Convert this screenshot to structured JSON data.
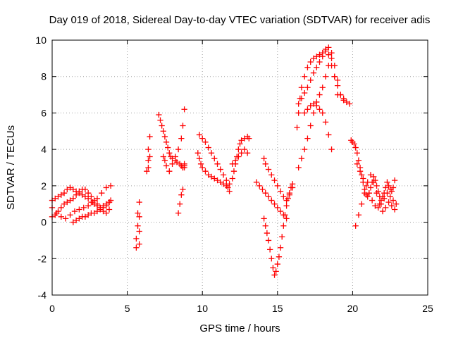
{
  "chart_data": {
    "type": "scatter",
    "title": "Day 019 of 2018, Sidereal Day-to-day VTEC variation (SDTVAR) for receiver adis",
    "xlabel": "GPS time / hours",
    "ylabel": "SDTVAR / TECUs",
    "xlim": [
      0,
      25
    ],
    "ylim": [
      -4,
      10
    ],
    "xticks": [
      "0",
      "5",
      "10",
      "15",
      "20",
      "25"
    ],
    "yticks": [
      "-4",
      "-2",
      "0",
      "2",
      "4",
      "6",
      "8",
      "10"
    ],
    "grid": true,
    "marker": "+",
    "series": [
      {
        "name": "SDTVAR",
        "color": "#ff0000",
        "x": [
          0.0,
          0.2,
          0.4,
          0.6,
          0.8,
          1.0,
          1.2,
          1.4,
          1.6,
          1.8,
          2.0,
          2.2,
          2.4,
          2.6,
          2.8,
          3.0,
          3.2,
          3.4,
          3.6,
          3.8,
          0.0,
          0.2,
          0.4,
          0.6,
          0.8,
          1.0,
          1.2,
          1.4,
          1.6,
          1.8,
          2.0,
          2.2,
          2.4,
          2.6,
          2.8,
          3.0,
          3.2,
          3.4,
          3.6,
          3.8,
          0.0,
          0.3,
          0.6,
          0.9,
          1.2,
          1.5,
          1.8,
          2.1,
          2.4,
          2.7,
          3.0,
          3.3,
          3.6,
          3.9,
          1.4,
          1.6,
          1.8,
          2.0,
          2.2,
          2.4,
          2.6,
          2.8,
          3.0,
          3.2,
          3.4,
          3.6,
          3.8,
          3.9,
          5.6,
          5.6,
          5.7,
          5.7,
          5.8,
          5.8,
          5.8,
          5.8,
          6.3,
          6.4,
          6.4,
          6.5,
          6.5,
          6.4,
          7.1,
          7.2,
          7.3,
          7.4,
          7.5,
          7.6,
          7.7,
          7.8,
          7.9,
          8.0,
          8.2,
          8.3,
          8.5,
          8.6,
          8.7,
          8.7,
          8.8,
          8.8,
          8.8,
          7.4,
          7.5,
          7.6,
          7.8,
          8.0,
          8.2,
          8.4,
          8.6,
          8.7,
          8.8,
          8.4,
          8.5,
          8.6,
          8.7,
          9.7,
          9.8,
          9.9,
          10.0,
          10.2,
          10.4,
          10.6,
          10.8,
          11.0,
          11.2,
          11.4,
          11.6,
          11.7,
          11.8,
          9.8,
          10.0,
          10.2,
          10.4,
          10.6,
          10.8,
          11.0,
          11.2,
          11.4,
          11.6,
          11.8,
          12.0,
          12.1,
          12.2,
          12.3,
          12.4,
          12.5,
          12.6,
          12.8,
          13.0,
          13.1,
          12.0,
          12.2,
          12.4,
          12.6,
          12.8,
          13.0,
          14.1,
          14.2,
          14.3,
          14.4,
          14.5,
          14.6,
          14.7,
          14.8,
          14.9,
          15.0,
          15.1,
          15.2,
          15.3,
          15.4,
          15.5,
          15.6,
          15.7,
          15.8,
          15.9,
          16.0,
          14.1,
          14.2,
          14.4,
          14.6,
          14.8,
          15.0,
          15.2,
          15.4,
          15.6,
          15.8,
          16.0,
          13.6,
          13.8,
          14.0,
          14.2,
          14.4,
          14.6,
          14.8,
          15.0,
          15.2,
          15.4,
          15.6,
          16.3,
          16.4,
          16.5,
          16.6,
          16.8,
          17.0,
          17.2,
          17.4,
          17.6,
          17.8,
          18.0,
          18.2,
          18.4,
          18.6,
          18.8,
          19.0,
          19.2,
          19.4,
          19.6,
          19.8,
          16.4,
          16.6,
          16.8,
          17.0,
          17.2,
          17.4,
          17.6,
          17.8,
          18.0,
          18.2,
          18.4,
          18.6,
          18.8,
          19.0,
          19.2,
          19.4,
          16.4,
          16.6,
          16.8,
          17.0,
          17.2,
          17.4,
          17.6,
          17.8,
          18.0,
          18.2,
          18.4,
          18.6,
          18.8,
          19.0,
          16.8,
          17.0,
          17.2,
          17.4,
          17.6,
          17.8,
          18.0,
          18.2,
          18.4,
          18.6,
          19.9,
          20.0,
          20.1,
          20.2,
          20.3,
          20.4,
          20.5,
          20.6,
          20.7,
          20.8,
          20.9,
          21.0,
          21.1,
          21.2,
          21.3,
          21.4,
          21.5,
          21.6,
          21.7,
          21.8,
          21.9,
          22.0,
          22.1,
          22.2,
          22.3,
          22.4,
          22.5,
          22.6,
          22.7,
          22.8,
          20.2,
          20.4,
          20.6,
          20.8,
          21.0,
          21.2,
          21.4,
          21.6,
          21.8,
          22.0,
          22.2,
          22.4,
          22.6,
          22.8,
          20.3,
          20.5,
          20.7,
          20.9,
          21.1,
          21.3,
          21.5,
          21.7,
          21.9,
          22.1,
          22.3,
          22.5,
          22.7,
          22.9
        ],
        "y": [
          1.2,
          1.3,
          1.4,
          1.5,
          1.6,
          1.8,
          1.9,
          1.8,
          1.7,
          1.6,
          1.5,
          1.4,
          1.3,
          1.1,
          1.0,
          0.9,
          0.8,
          0.9,
          1.0,
          1.1,
          0.3,
          0.4,
          0.6,
          0.8,
          1.0,
          1.1,
          1.2,
          1.3,
          1.5,
          1.7,
          1.8,
          1.8,
          1.6,
          1.4,
          1.2,
          1.0,
          0.8,
          0.6,
          0.5,
          0.7,
          0.8,
          0.5,
          0.3,
          0.2,
          0.4,
          0.6,
          0.7,
          0.8,
          0.9,
          1.1,
          1.3,
          1.6,
          1.9,
          2.0,
          0.0,
          0.1,
          0.2,
          0.3,
          0.3,
          0.4,
          0.5,
          0.5,
          0.6,
          0.7,
          0.8,
          0.9,
          1.1,
          1.2,
          -1.4,
          -0.9,
          -0.2,
          0.5,
          1.1,
          -1.2,
          -0.5,
          0.3,
          2.8,
          3.4,
          4.0,
          4.7,
          3.6,
          3.0,
          5.9,
          5.6,
          5.3,
          5.0,
          4.7,
          4.4,
          4.1,
          3.8,
          3.6,
          3.5,
          3.4,
          3.3,
          3.2,
          3.1,
          3.0,
          3.0,
          3.0,
          3.1,
          3.2,
          3.6,
          3.4,
          3.1,
          2.8,
          3.2,
          3.6,
          4.0,
          4.6,
          5.3,
          6.2,
          0.5,
          1.0,
          1.5,
          1.8,
          3.8,
          3.5,
          3.2,
          3.0,
          2.8,
          2.6,
          2.5,
          2.4,
          2.3,
          2.2,
          2.1,
          2.0,
          1.9,
          1.7,
          4.8,
          4.6,
          4.4,
          4.1,
          3.8,
          3.5,
          3.2,
          2.9,
          2.6,
          2.3,
          2.1,
          2.4,
          2.8,
          3.2,
          3.6,
          4.0,
          4.3,
          4.5,
          4.6,
          4.7,
          4.6,
          3.2,
          3.4,
          3.6,
          3.8,
          4.0,
          3.8,
          0.2,
          -0.2,
          -0.6,
          -1.0,
          -1.5,
          -2.0,
          -2.5,
          -2.9,
          -2.7,
          -2.3,
          -1.9,
          -1.4,
          -0.8,
          -0.2,
          0.4,
          0.9,
          1.3,
          1.6,
          1.9,
          2.1,
          3.5,
          3.2,
          2.9,
          2.6,
          2.3,
          2.0,
          1.7,
          1.4,
          1.2,
          1.5,
          1.9,
          2.2,
          2.0,
          1.8,
          1.6,
          1.4,
          1.2,
          1.0,
          0.8,
          0.6,
          0.4,
          0.2,
          5.2,
          6.0,
          6.8,
          7.4,
          8.0,
          8.5,
          8.8,
          9.0,
          9.1,
          9.2,
          9.3,
          9.4,
          9.2,
          8.6,
          8.0,
          7.5,
          7.0,
          6.8,
          6.6,
          6.5,
          6.5,
          6.8,
          7.1,
          7.4,
          7.8,
          8.2,
          8.5,
          8.8,
          9.1,
          9.5,
          9.6,
          9.3,
          8.6,
          7.8,
          7.0,
          6.7,
          3.0,
          3.5,
          4.0,
          4.6,
          5.3,
          6.0,
          6.6,
          7.0,
          7.4,
          8.0,
          8.6,
          9.0,
          8.0,
          7.0,
          6.0,
          6.2,
          6.4,
          6.5,
          6.4,
          6.2,
          6.0,
          5.5,
          4.8,
          4.0,
          4.5,
          4.4,
          4.3,
          4.1,
          3.8,
          3.4,
          3.0,
          2.6,
          2.2,
          1.8,
          1.5,
          1.4,
          1.6,
          1.9,
          2.2,
          2.5,
          2.3,
          2.0,
          1.7,
          1.4,
          1.2,
          1.4,
          1.6,
          1.9,
          2.2,
          2.0,
          1.8,
          1.7,
          1.9,
          2.3,
          -0.2,
          0.4,
          1.0,
          1.6,
          2.2,
          2.6,
          2.2,
          1.6,
          1.0,
          0.6,
          0.8,
          1.1,
          0.9,
          0.7,
          3.2,
          2.8,
          2.4,
          2.0,
          1.6,
          1.2,
          0.9,
          0.8,
          1.0,
          1.3,
          1.6,
          1.4,
          1.2,
          1.0
        ]
      }
    ]
  }
}
